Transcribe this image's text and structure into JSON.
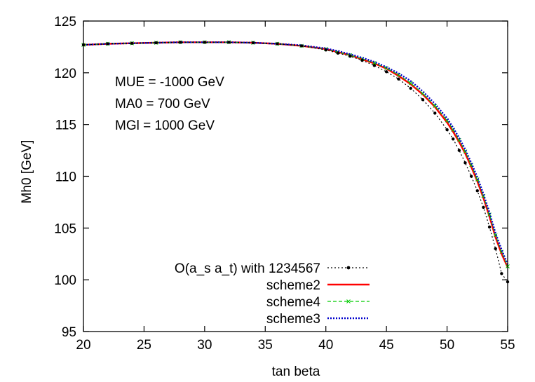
{
  "chart_data": {
    "type": "line",
    "title": "",
    "xlabel": "tan beta",
    "ylabel": "Mh0 [GeV]",
    "xlim": [
      20,
      55
    ],
    "ylim": [
      95,
      125
    ],
    "xticks": [
      20,
      25,
      30,
      35,
      40,
      45,
      50,
      55
    ],
    "yticks": [
      95,
      100,
      105,
      110,
      115,
      120,
      125
    ],
    "grid": false,
    "legend_position": "bottom-left",
    "annotations": [
      "MUE = -1000 GeV",
      "MA0 = 700 GeV",
      "MGl = 1000 GeV"
    ],
    "series": [
      {
        "name": "O(a_s a_t) with 1234567",
        "color": "#000000",
        "style": "dotted-points",
        "x": [
          20,
          22,
          24,
          26,
          28,
          30,
          32,
          34,
          36,
          38,
          40,
          41,
          42,
          43,
          44,
          45,
          46,
          47,
          48,
          49,
          50,
          50.5,
          51,
          51.5,
          52,
          52.5,
          53,
          53.5,
          54,
          54.5,
          55
        ],
        "y": [
          122.7,
          122.8,
          122.85,
          122.9,
          122.95,
          122.95,
          122.95,
          122.9,
          122.8,
          122.6,
          122.2,
          121.9,
          121.6,
          121.2,
          120.7,
          120.1,
          119.4,
          118.5,
          117.4,
          116.1,
          114.5,
          113.6,
          112.5,
          111.3,
          110.0,
          108.6,
          107.0,
          105.1,
          103.0,
          100.6,
          99.8
        ]
      },
      {
        "name": "scheme2",
        "color": "#ff0000",
        "style": "solid",
        "x": [
          20,
          22,
          24,
          26,
          28,
          30,
          32,
          34,
          36,
          38,
          40,
          41,
          42,
          43,
          44,
          45,
          46,
          47,
          48,
          49,
          50,
          50.5,
          51,
          51.5,
          52,
          52.5,
          53,
          53.5,
          54,
          54.5,
          55
        ],
        "y": [
          122.7,
          122.8,
          122.85,
          122.9,
          122.95,
          122.95,
          122.95,
          122.9,
          122.8,
          122.6,
          122.3,
          122.0,
          121.7,
          121.3,
          120.9,
          120.4,
          119.7,
          118.9,
          117.9,
          116.7,
          115.2,
          114.3,
          113.3,
          112.2,
          110.9,
          109.5,
          107.9,
          106.1,
          104.1,
          102.5,
          101.2
        ]
      },
      {
        "name": "scheme4",
        "color": "#00cc00",
        "style": "dashed-points",
        "x": [
          20,
          22,
          24,
          26,
          28,
          30,
          32,
          34,
          36,
          38,
          40,
          41,
          42,
          43,
          44,
          45,
          46,
          47,
          48,
          49,
          50,
          50.5,
          51,
          51.5,
          52,
          52.5,
          53,
          53.5,
          54,
          54.5,
          55
        ],
        "y": [
          122.7,
          122.8,
          122.85,
          122.9,
          122.95,
          122.95,
          122.95,
          122.9,
          122.8,
          122.6,
          122.3,
          122.0,
          121.7,
          121.35,
          120.95,
          120.45,
          119.8,
          119.0,
          118.0,
          116.8,
          115.4,
          114.5,
          113.5,
          112.4,
          111.1,
          109.7,
          108.1,
          106.3,
          104.3,
          102.7,
          101.3
        ]
      },
      {
        "name": "scheme3",
        "color": "#0000cc",
        "style": "dotted",
        "x": [
          20,
          22,
          24,
          26,
          28,
          30,
          32,
          34,
          36,
          38,
          40,
          41,
          42,
          43,
          44,
          45,
          46,
          47,
          48,
          49,
          50,
          50.5,
          51,
          51.5,
          52,
          52.5,
          53,
          53.5,
          54,
          54.5,
          55
        ],
        "y": [
          122.7,
          122.8,
          122.85,
          122.9,
          122.95,
          122.95,
          122.95,
          122.9,
          122.8,
          122.65,
          122.35,
          122.1,
          121.8,
          121.45,
          121.05,
          120.55,
          119.95,
          119.2,
          118.2,
          117.0,
          115.6,
          114.7,
          113.7,
          112.6,
          111.3,
          109.9,
          108.3,
          106.5,
          104.5,
          102.9,
          101.5
        ]
      }
    ]
  }
}
